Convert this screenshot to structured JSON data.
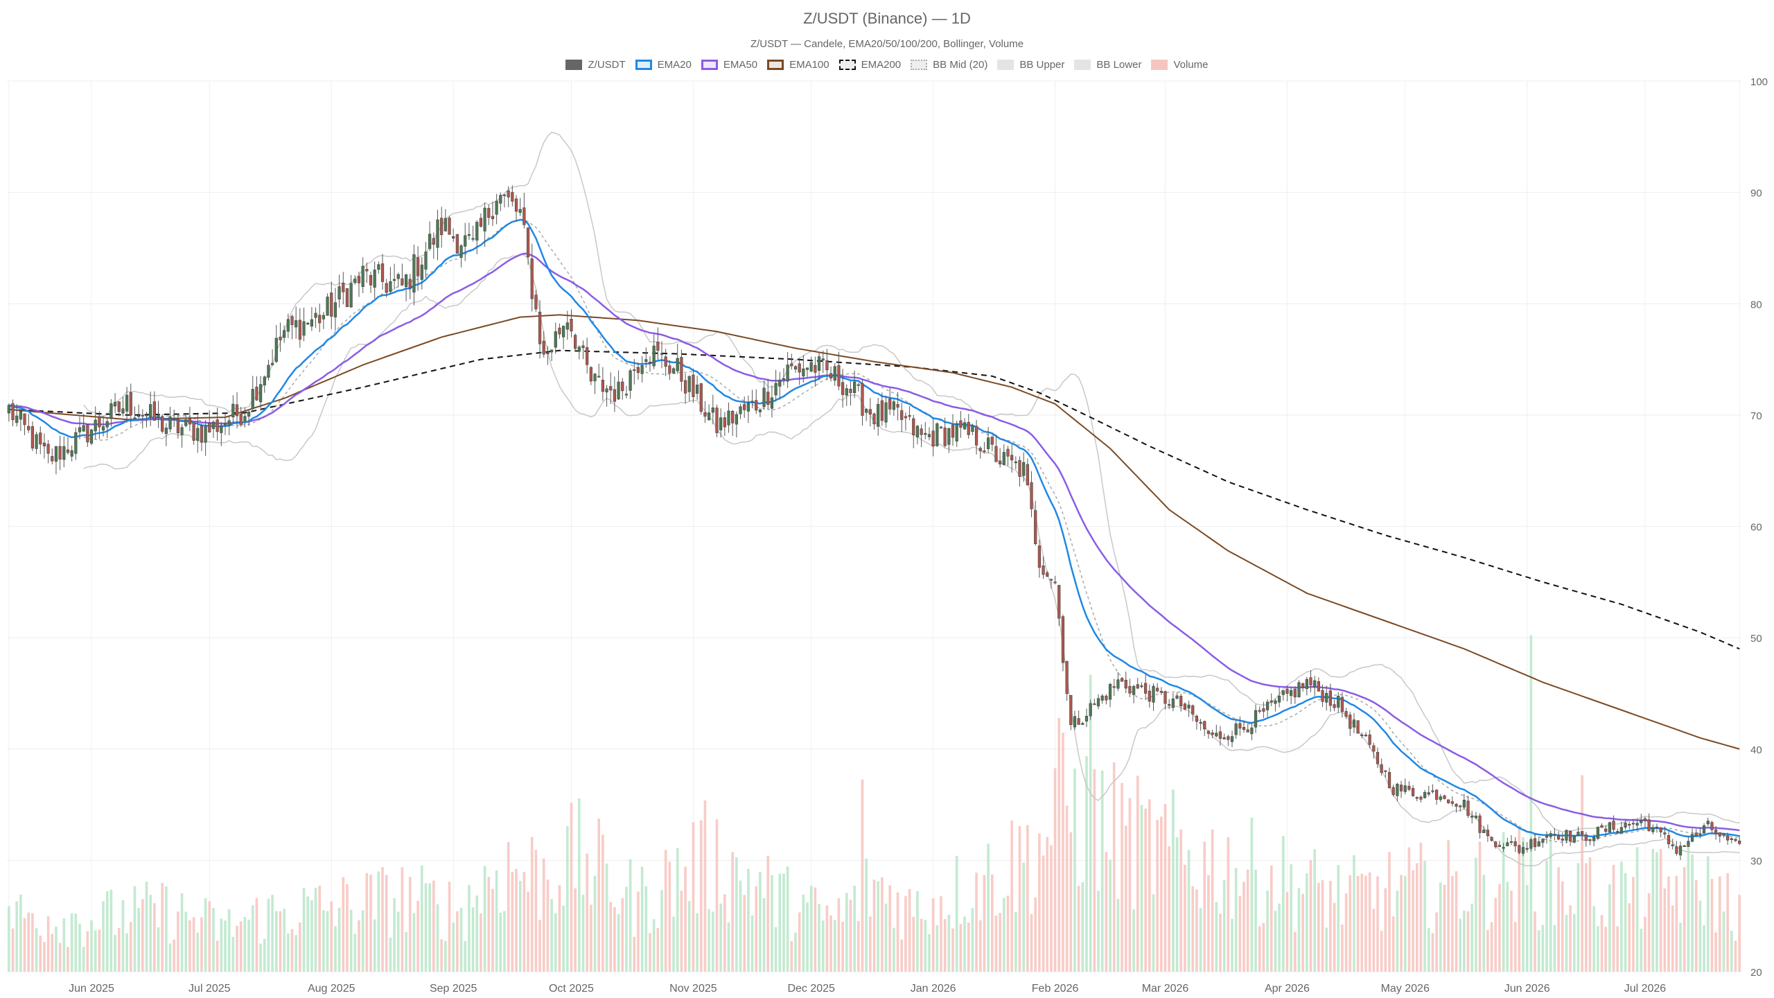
{
  "chart_data": {
    "type": "candlestick",
    "title": "Z/USDT (Binance) — 1D",
    "subtitle": "Z/USDT — Candele, EMA20/50/100/200, Bollinger, Volume",
    "legend": [
      {
        "name": "Z/USDT",
        "style": "candle",
        "color": "#666666"
      },
      {
        "name": "EMA20",
        "style": "line",
        "color": "#1e88e5"
      },
      {
        "name": "EMA50",
        "style": "line",
        "color": "#8a5ce6"
      },
      {
        "name": "EMA100",
        "style": "line",
        "color": "#7a4a24"
      },
      {
        "name": "EMA200",
        "style": "dashed",
        "color": "#111111"
      },
      {
        "name": "BB Mid (20)",
        "style": "dotted",
        "color": "#aaaaaa"
      },
      {
        "name": "BB Upper",
        "style": "line",
        "color": "#cccccc"
      },
      {
        "name": "BB Lower",
        "style": "line",
        "color": "#cccccc"
      },
      {
        "name": "Volume",
        "style": "bar",
        "color": "#f5c6c1"
      }
    ],
    "colors": {
      "up": "#4c7a55",
      "down": "#b0574d",
      "vol_up": "#b9e6c9",
      "vol_down": "#f7c3bd"
    },
    "x_axis": {
      "ticks": [
        "Jun 2025",
        "Jul 2025",
        "Aug 2025",
        "Sep 2025",
        "Oct 2025",
        "Nov 2025",
        "Dec 2025",
        "Jan 2026",
        "Feb 2026",
        "Mar 2026",
        "Apr 2026",
        "May 2026",
        "Jun 2026",
        "Jul 2026"
      ],
      "tick_day_index": [
        21,
        51,
        82,
        113,
        143,
        174,
        204,
        235,
        266,
        294,
        325,
        355,
        386,
        416
      ],
      "range": [
        "2025-05-11",
        "2026-07-28"
      ]
    },
    "y_axis": {
      "position": "right",
      "min": 20,
      "max": 100,
      "ticks": [
        20,
        30,
        40,
        50,
        60,
        70,
        80,
        90,
        100
      ]
    },
    "grid": true,
    "volume_overlay": "bottom, no scale",
    "close_anchors": {
      "day": [
        0,
        10,
        20,
        30,
        40,
        50,
        60,
        70,
        80,
        90,
        100,
        110,
        118,
        124,
        130,
        136,
        142,
        148,
        155,
        162,
        170,
        180,
        190,
        198,
        204,
        212,
        220,
        226,
        232,
        240,
        246,
        252,
        258,
        262,
        266,
        270,
        276,
        282,
        290,
        298,
        306,
        314,
        322,
        330,
        338,
        346,
        352,
        358,
        364,
        370,
        376,
        384,
        392,
        400,
        408,
        416,
        424,
        432,
        440
      ],
      "close": [
        70.5,
        66,
        68.5,
        71,
        69,
        68.5,
        70.5,
        77.5,
        79,
        82.5,
        81.5,
        87,
        85,
        90,
        88,
        75,
        79,
        73,
        72,
        76,
        74,
        69,
        71,
        74,
        74.5,
        73,
        70,
        70,
        68,
        68.5,
        68,
        66,
        65,
        57,
        55,
        42,
        44,
        46,
        45,
        44,
        41,
        42,
        44,
        46,
        44,
        40,
        36.5,
        36,
        36,
        35,
        32,
        31,
        32.5,
        32,
        33,
        33.5,
        31,
        33,
        31
      ]
    },
    "ema200_anchors": {
      "day": [
        0,
        30,
        60,
        90,
        120,
        140,
        170,
        200,
        230,
        250,
        262,
        275,
        290,
        310,
        330,
        350,
        370,
        390,
        410,
        430,
        440
      ],
      "value": [
        70.5,
        70,
        70.2,
        72.5,
        75,
        75.8,
        75.5,
        75,
        74.3,
        73.5,
        72,
        69.8,
        67.2,
        64,
        61.5,
        59.2,
        57.2,
        55,
        53,
        50.5,
        49
      ]
    },
    "ema100_anchors": {
      "day": [
        0,
        30,
        55,
        70,
        90,
        110,
        130,
        140,
        160,
        180,
        200,
        220,
        240,
        255,
        266,
        280,
        295,
        310,
        330,
        350,
        370,
        390,
        410,
        430,
        440
      ],
      "value": [
        70.5,
        69.6,
        69.8,
        71.5,
        74.5,
        77,
        78.8,
        79,
        78.5,
        77.5,
        76,
        74.8,
        73.8,
        72.5,
        71,
        67,
        61.5,
        57.8,
        54,
        51.5,
        49,
        46,
        43.5,
        41,
        40
      ]
    },
    "volume_anchors": {
      "day": [
        0,
        20,
        40,
        55,
        65,
        85,
        100,
        115,
        125,
        135,
        145,
        160,
        170,
        178,
        190,
        200,
        210,
        220,
        230,
        240,
        250,
        262,
        268,
        272,
        285,
        300,
        320,
        340,
        355,
        370,
        385,
        400,
        410,
        430,
        440
      ],
      "value": [
        13,
        12,
        14,
        10,
        13,
        15,
        17,
        14,
        24,
        22,
        26,
        16,
        22,
        26,
        20,
        15,
        12,
        20,
        14,
        18,
        22,
        28,
        40,
        36,
        30,
        26,
        22,
        17,
        19,
        20,
        22,
        18,
        18,
        20,
        14
      ]
    },
    "volume_spikes": [
      {
        "day": 217,
        "value": 44
      },
      {
        "day": 275,
        "value": 68
      },
      {
        "day": 387,
        "value": 77
      },
      {
        "day": 400,
        "value": 45
      }
    ]
  }
}
